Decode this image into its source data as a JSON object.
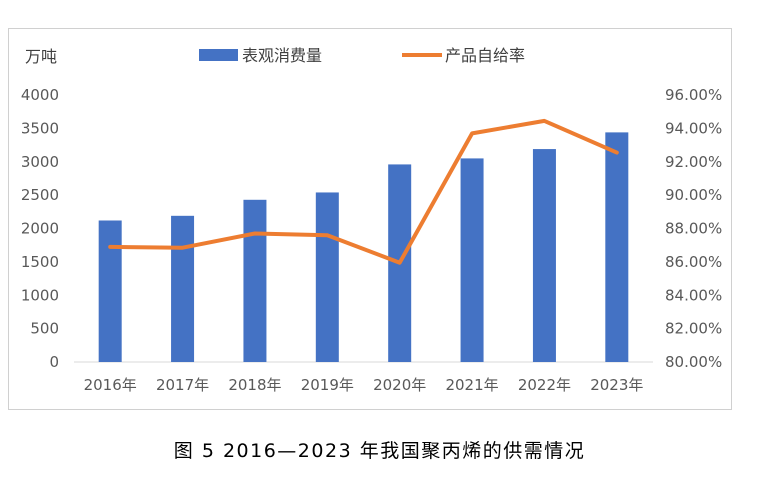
{
  "chart_data": {
    "type": "bar+line",
    "categories": [
      "2016年",
      "2017年",
      "2018年",
      "2019年",
      "2020年",
      "2021年",
      "2022年",
      "2023年"
    ],
    "series": [
      {
        "name": "表观消费量",
        "type": "bar",
        "axis": "left",
        "color": "#4472C4",
        "values": [
          2120,
          2190,
          2430,
          2540,
          2960,
          3050,
          3190,
          3440
        ]
      },
      {
        "name": "产品自给率",
        "type": "line",
        "axis": "right",
        "color": "#ED7D31",
        "values": [
          86.9,
          86.85,
          87.7,
          87.6,
          85.95,
          93.7,
          94.45,
          92.55
        ]
      }
    ],
    "y_left": {
      "unit": "万吨",
      "min": 0,
      "max": 4000,
      "step": 500,
      "ticks": [
        "0",
        "500",
        "1000",
        "1500",
        "2000",
        "2500",
        "3000",
        "3500",
        "4000"
      ]
    },
    "y_right": {
      "min": 80,
      "max": 96,
      "step": 2,
      "ticks": [
        "80.00%",
        "82.00%",
        "84.00%",
        "86.00%",
        "88.00%",
        "90.00%",
        "92.00%",
        "94.00%",
        "96.00%"
      ]
    },
    "legend_position": "top",
    "grid": false
  },
  "caption": "图 5  2016—2023 年我国聚丙烯的供需情况"
}
